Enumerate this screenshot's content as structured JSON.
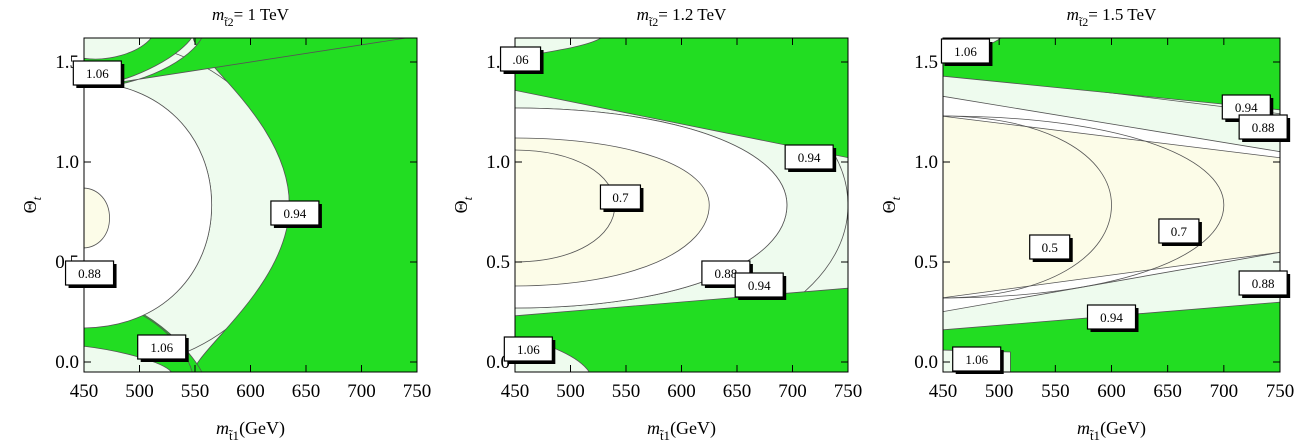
{
  "chart_data": [
    {
      "type": "contour",
      "title": {
        "prefix": "m",
        "sub": "t̃2",
        "suffix": "= 1 TeV"
      },
      "xlabel": {
        "prefix": "m",
        "sub": "t̃1",
        "suffix": "(GeV)"
      },
      "ylabel": {
        "main": "Θ",
        "sub": "t"
      },
      "xlim": [
        450,
        750
      ],
      "ylim": [
        -0.05,
        1.62
      ],
      "xticks": [
        450,
        500,
        550,
        600,
        650,
        700,
        750
      ],
      "yticks": [
        0.0,
        0.5,
        1.0,
        1.5
      ],
      "colors": {
        "green": "#22dd22",
        "light_green": "#eefbee",
        "white": "#ffffff",
        "cream": "#fcfce8",
        "line": "#555555"
      },
      "regions": [
        {
          "fill": "light_green",
          "type": "bow",
          "vertex": [
            635,
            0.785
          ],
          "y0": -0.05,
          "y1": 1.62
        },
        {
          "fill": "green",
          "type": "band",
          "x0": 450,
          "y0_left": 1.37,
          "y0_right": 1.62,
          "y1_left": 1.62,
          "y1_right": 1.62,
          "vertex_x": 548
        },
        {
          "fill": "green",
          "type": "band",
          "x0": 450,
          "y0_left": -0.05,
          "y0_right": -0.05,
          "y1_left": 0.33,
          "y1_right": -0.05,
          "vertex_x": 548
        },
        {
          "fill": "white",
          "type": "bow",
          "vertex": [
            565,
            0.785
          ],
          "y0": 0.17,
          "y1": 1.4
        },
        {
          "fill": "cream",
          "type": "bow",
          "vertex": [
            473,
            0.72
          ],
          "y0": 0.57,
          "y1": 0.87
        }
      ],
      "contour_labels": [
        {
          "text": "1.06",
          "x": 462,
          "y": 1.45
        },
        {
          "text": "0.94",
          "x": 640,
          "y": 0.75
        },
        {
          "text": "0.88",
          "x": 455,
          "y": 0.45
        },
        {
          "text": "1.06",
          "x": 520,
          "y": 0.08
        }
      ]
    },
    {
      "type": "contour",
      "title": {
        "prefix": "m",
        "sub": "t̃2",
        "suffix": "= 1.2 TeV"
      },
      "xlabel": {
        "prefix": "m",
        "sub": "t̃1",
        "suffix": "(GeV)"
      },
      "ylabel": {
        "main": "Θ",
        "sub": "t"
      },
      "xlim": [
        450,
        750
      ],
      "ylim": [
        -0.05,
        1.62
      ],
      "xticks": [
        450,
        500,
        550,
        600,
        650,
        700,
        750
      ],
      "yticks": [
        0.0,
        0.5,
        1.0,
        1.5
      ],
      "colors": {
        "green": "#22dd22",
        "light_green": "#eefbee",
        "white": "#ffffff",
        "cream": "#fcfce8",
        "line": "#555555"
      },
      "regions": [
        {
          "fill": "light_green",
          "type": "bow",
          "vertex": [
            750,
            0.785
          ],
          "y0": -0.05,
          "y1": 1.62
        },
        {
          "fill": "green",
          "type": "band",
          "x0": 450,
          "y0_left": 1.36,
          "y0_right": 1.02,
          "y1_left": 1.62,
          "y1_right": 1.62
        },
        {
          "fill": "green",
          "type": "band",
          "x0": 450,
          "y0_left": -0.05,
          "y0_right": -0.05,
          "y1_left": 0.23,
          "y1_right": 0.37
        },
        {
          "fill": "white",
          "type": "bow",
          "vertex": [
            695,
            0.785
          ],
          "y0": 0.27,
          "y1": 1.27
        },
        {
          "fill": "cream",
          "type": "bow",
          "vertex": [
            625,
            0.785
          ],
          "y0": 0.38,
          "y1": 1.12
        }
      ],
      "contour_labels": [
        {
          "text": ".06",
          "x": 455,
          "y": 1.52
        },
        {
          "text": "0.94",
          "x": 715,
          "y": 1.03
        },
        {
          "text": "0.7",
          "x": 545,
          "y": 0.83
        },
        {
          "text": "0.88",
          "x": 640,
          "y": 0.45
        },
        {
          "text": "0.94",
          "x": 670,
          "y": 0.39
        },
        {
          "text": "1.06",
          "x": 462,
          "y": 0.07
        }
      ]
    },
    {
      "type": "contour",
      "title": {
        "prefix": "m",
        "sub": "t̃2",
        "suffix": "= 1.5 TeV"
      },
      "xlabel": {
        "prefix": "m",
        "sub": "t̃1",
        "suffix": "(GeV)"
      },
      "ylabel": {
        "main": "Θ",
        "sub": "t"
      },
      "xlim": [
        450,
        750
      ],
      "ylim": [
        -0.05,
        1.62
      ],
      "xticks": [
        450,
        500,
        550,
        600,
        650,
        700,
        750
      ],
      "yticks": [
        0.0,
        0.5,
        1.0,
        1.5
      ],
      "colors": {
        "green": "#22dd22",
        "light_green": "#eefbee",
        "white": "#ffffff",
        "cream": "#fcfce8",
        "line": "#555555"
      },
      "regions": [
        {
          "fill": "light_green",
          "type": "band",
          "x0": 450,
          "y0_left": 0.1,
          "y0_right": 0.27,
          "y1_left": 1.45,
          "y1_right": 1.24
        },
        {
          "fill": "green",
          "type": "band",
          "x0": 450,
          "y0_left": 1.43,
          "y0_right": 1.26,
          "y1_left": 1.62,
          "y1_right": 1.62
        },
        {
          "fill": "green",
          "type": "band",
          "x0": 450,
          "y0_left": -0.05,
          "y0_right": -0.05,
          "y1_left": 0.16,
          "y1_right": 0.3
        },
        {
          "fill": "white",
          "type": "band",
          "x0": 450,
          "y0_left": 0.25,
          "y0_right": 0.55,
          "y1_left": 1.33,
          "y1_right": 1.05
        },
        {
          "fill": "cream",
          "type": "band",
          "x0": 450,
          "y0_left": 0.32,
          "y0_right": 0.55,
          "y1_left": 1.23,
          "y1_right": 1.02
        }
      ],
      "curves": [
        {
          "type": "bow",
          "vertex": [
            600,
            0.785
          ],
          "y0": 0.32,
          "y1": 1.23
        },
        {
          "type": "bow",
          "vertex": [
            700,
            0.785
          ],
          "y0": 0.32,
          "y1": 1.23
        }
      ],
      "contour_labels": [
        {
          "text": "1.06",
          "x": 470,
          "y": 1.56
        },
        {
          "text": "0.94",
          "x": 720,
          "y": 1.28
        },
        {
          "text": "0.88",
          "x": 735,
          "y": 1.18
        },
        {
          "text": "0.5",
          "x": 545,
          "y": 0.58
        },
        {
          "text": "0.7",
          "x": 660,
          "y": 0.66
        },
        {
          "text": "0.88",
          "x": 735,
          "y": 0.4
        },
        {
          "text": "0.94",
          "x": 600,
          "y": 0.23
        },
        {
          "text": "1.06",
          "x": 480,
          "y": 0.02
        }
      ]
    }
  ]
}
